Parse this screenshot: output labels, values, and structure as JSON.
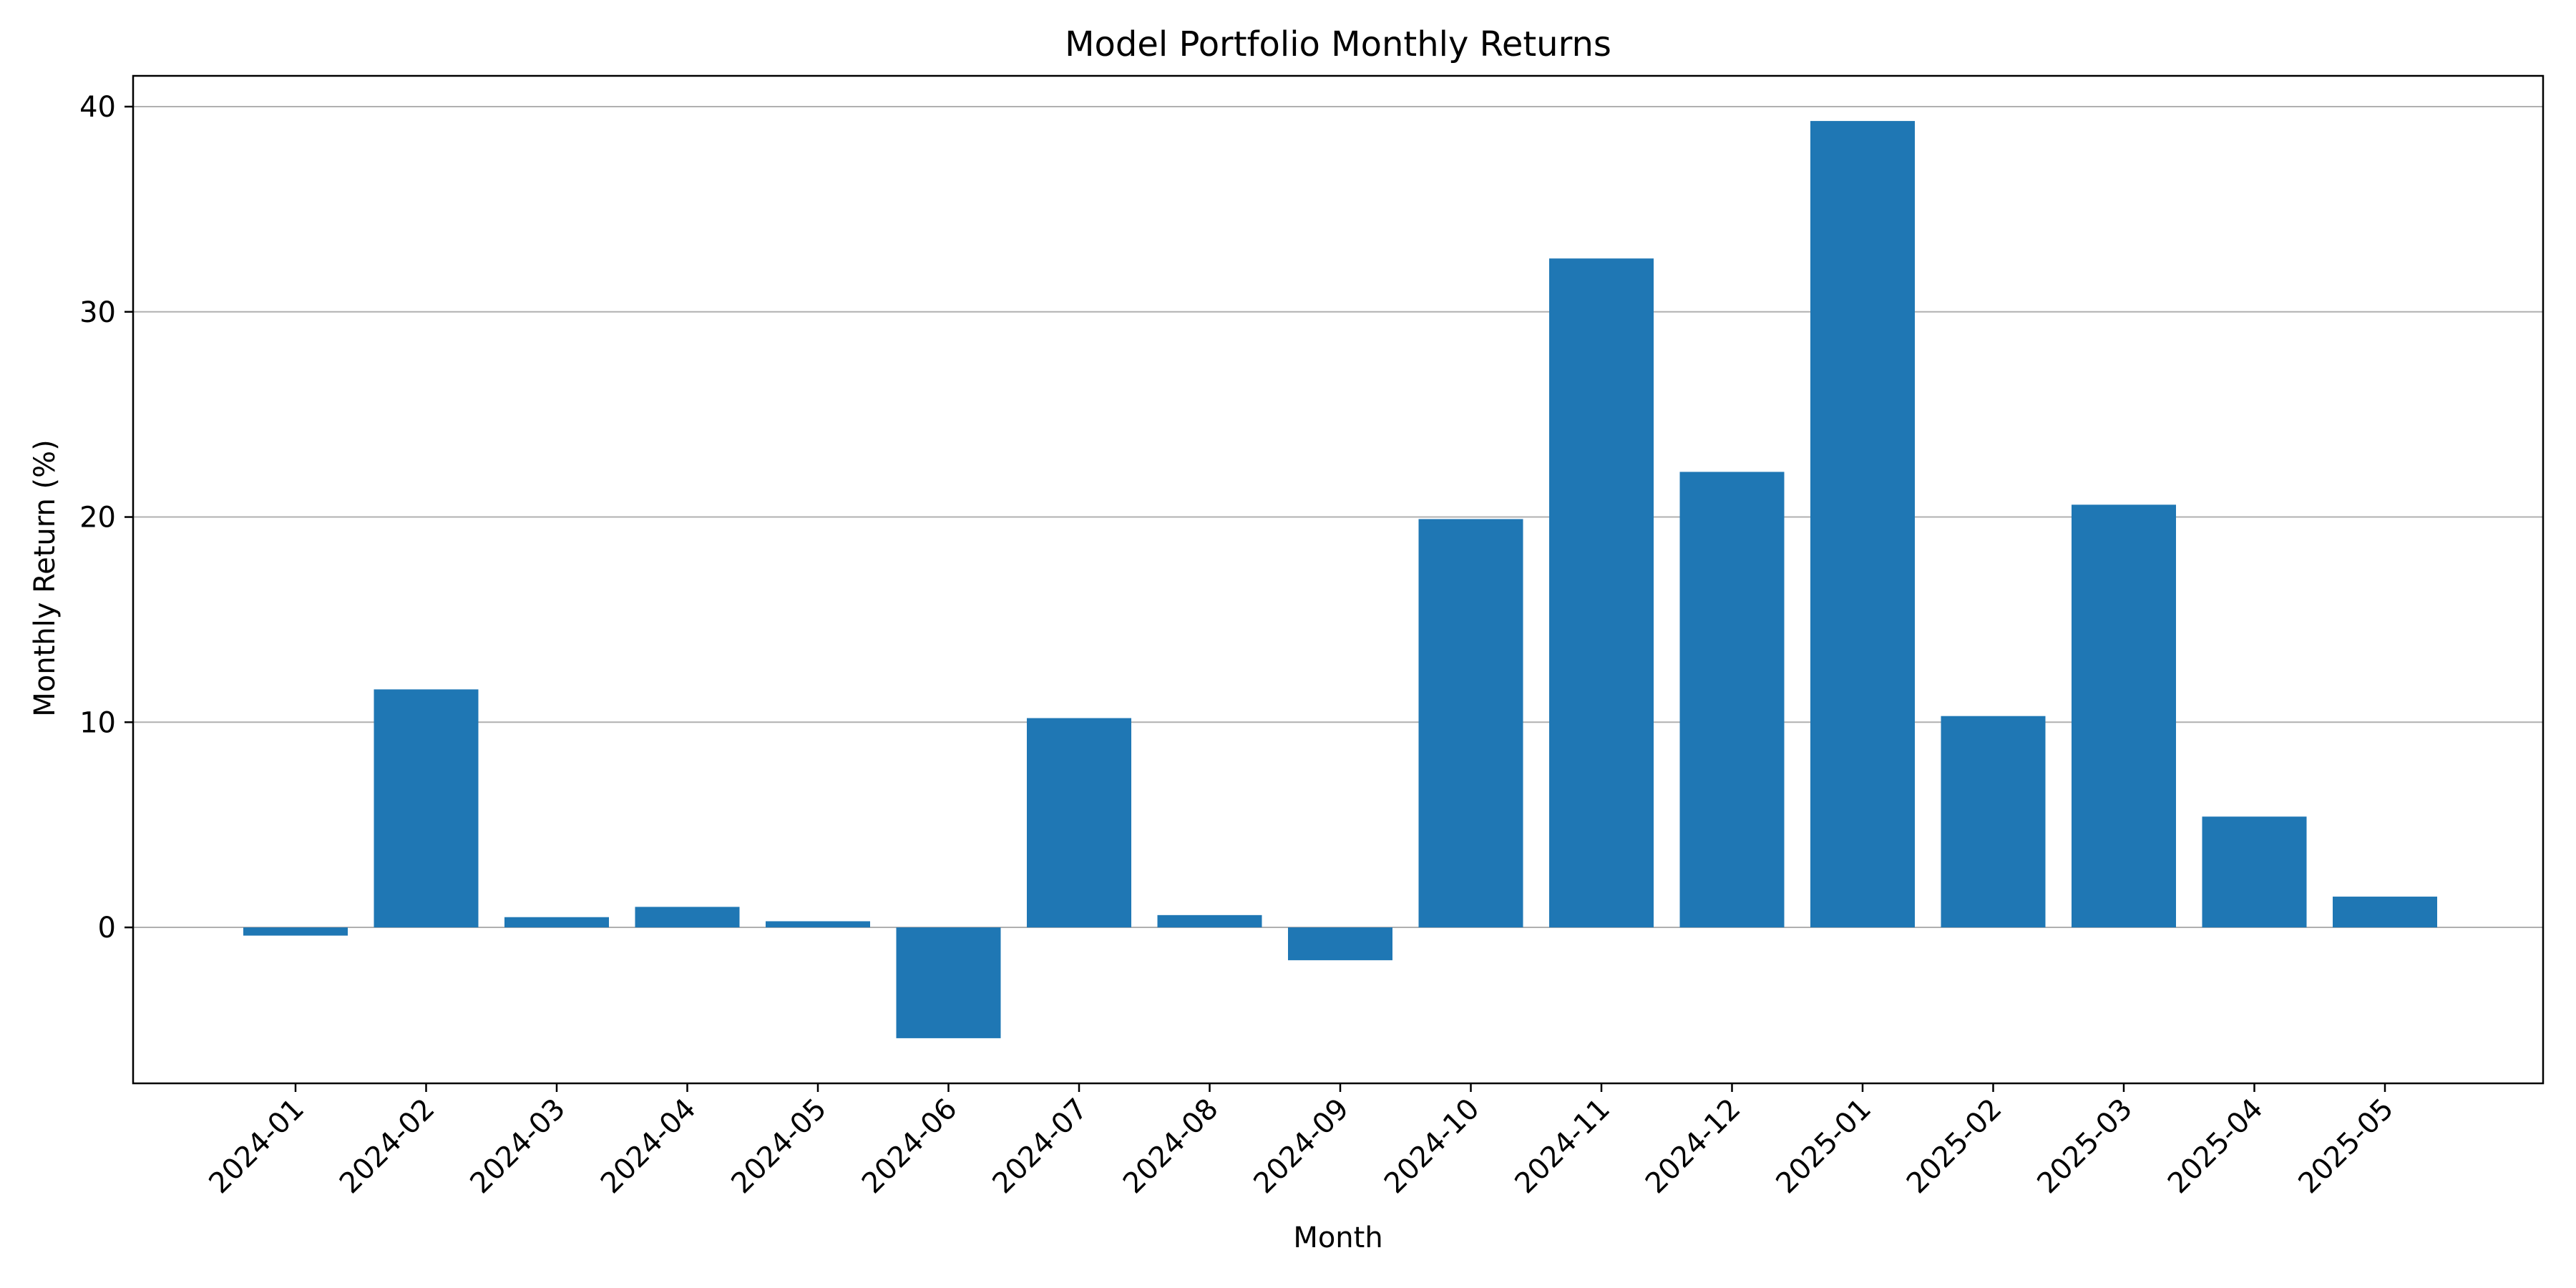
{
  "chart_data": {
    "type": "bar",
    "title": "Model Portfolio Monthly Returns",
    "xlabel": "Month",
    "ylabel": "Monthly Return (%)",
    "categories": [
      "2024-01",
      "2024-02",
      "2024-03",
      "2024-04",
      "2024-05",
      "2024-06",
      "2024-07",
      "2024-08",
      "2024-09",
      "2024-10",
      "2024-11",
      "2024-12",
      "2025-01",
      "2025-02",
      "2025-03",
      "2025-04",
      "2025-05"
    ],
    "values": [
      -0.4,
      11.6,
      0.5,
      1.0,
      0.3,
      -5.4,
      10.2,
      0.6,
      -1.6,
      19.9,
      32.6,
      22.2,
      39.3,
      10.3,
      20.6,
      5.4,
      1.5
    ],
    "ylim": [
      -7.6,
      41.5
    ],
    "yticks": [
      0,
      10,
      20,
      30,
      40
    ],
    "grid": "y",
    "bar_color": "#1f77b4",
    "grid_color": "#b0b0b0",
    "legend": "none"
  }
}
